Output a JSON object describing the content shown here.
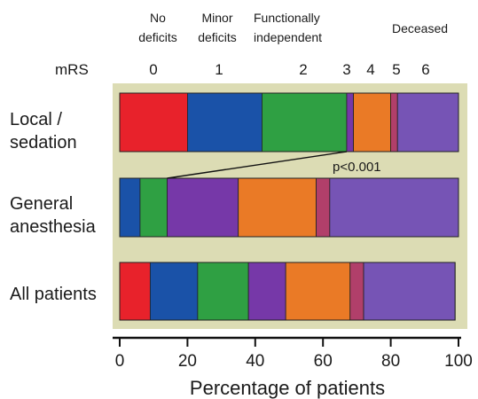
{
  "chart_data": {
    "type": "bar",
    "orientation": "horizontal",
    "stacked": true,
    "xlabel": "Percentage of patients",
    "xlim": [
      0,
      100
    ],
    "xticks": [
      "0",
      "20",
      "40",
      "60",
      "80",
      "100"
    ],
    "scale_label": "mRS",
    "mrs_scores": [
      "0",
      "1",
      "2",
      "3",
      "4",
      "5",
      "6"
    ],
    "group_labels": [
      "No deficits",
      "Minor deficits",
      "Functionally independent",
      "Deceased"
    ],
    "categories": [
      "Local / sedation",
      "General anesthesia",
      "All patients"
    ],
    "series": [
      {
        "name": "0",
        "color": "#e8222b",
        "values": [
          20,
          0,
          9
        ]
      },
      {
        "name": "1",
        "color": "#1a52a8",
        "values": [
          22,
          6,
          14
        ]
      },
      {
        "name": "2",
        "color": "#2fa043",
        "values": [
          25,
          8,
          15
        ]
      },
      {
        "name": "3",
        "color": "#7638a8",
        "values": [
          2,
          21,
          11
        ]
      },
      {
        "name": "4",
        "color": "#ea7a26",
        "values": [
          11,
          23,
          19
        ]
      },
      {
        "name": "5",
        "color": "#b13f6a",
        "values": [
          2,
          4,
          4
        ]
      },
      {
        "name": "6",
        "color": "#7654b5",
        "values": [
          18,
          38,
          27
        ]
      }
    ],
    "annotation": "p<0.001",
    "plot_background": "#dcdcb4"
  }
}
